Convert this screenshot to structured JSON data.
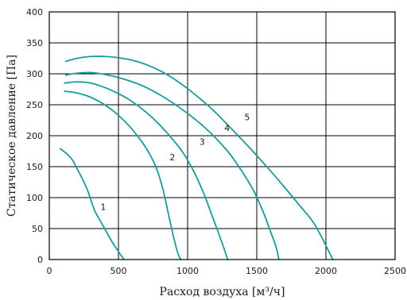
{
  "chart_data": {
    "type": "line",
    "title": "",
    "xlabel": "Расход воздуха [м³/ч]",
    "ylabel": "Статическое давление [Па]",
    "xlim": [
      0,
      2500
    ],
    "ylim": [
      0,
      400
    ],
    "x_ticks": [
      "0",
      "500",
      "1000",
      "1500",
      "2000",
      "2500"
    ],
    "y_ticks": [
      "0",
      "50",
      "100",
      "150",
      "200",
      "250",
      "300",
      "350",
      "400"
    ],
    "grid": true,
    "line_color": "#1a9a9a",
    "series": [
      {
        "name": "1",
        "label_at": [
          390,
          80
        ],
        "points": [
          [
            80,
            179
          ],
          [
            130,
            170
          ],
          [
            170,
            160
          ],
          [
            200,
            147
          ],
          [
            240,
            130
          ],
          [
            280,
            110
          ],
          [
            310,
            90
          ],
          [
            330,
            78
          ],
          [
            370,
            62
          ],
          [
            400,
            50
          ],
          [
            450,
            30
          ],
          [
            500,
            13
          ],
          [
            540,
            0
          ]
        ]
      },
      {
        "name": "2",
        "label_at": [
          890,
          160
        ],
        "points": [
          [
            110,
            272
          ],
          [
            200,
            269
          ],
          [
            300,
            262
          ],
          [
            400,
            250
          ],
          [
            500,
            233
          ],
          [
            600,
            210
          ],
          [
            700,
            180
          ],
          [
            770,
            150
          ],
          [
            820,
            115
          ],
          [
            860,
            75
          ],
          [
            900,
            35
          ],
          [
            930,
            10
          ],
          [
            950,
            0
          ]
        ]
      },
      {
        "name": "3",
        "label_at": [
          1105,
          185
        ],
        "points": [
          [
            110,
            285
          ],
          [
            200,
            287
          ],
          [
            300,
            285
          ],
          [
            400,
            278
          ],
          [
            500,
            268
          ],
          [
            600,
            255
          ],
          [
            700,
            238
          ],
          [
            800,
            217
          ],
          [
            900,
            192
          ],
          [
            980,
            168
          ],
          [
            1050,
            140
          ],
          [
            1120,
            105
          ],
          [
            1170,
            75
          ],
          [
            1220,
            45
          ],
          [
            1260,
            20
          ],
          [
            1290,
            0
          ]
        ]
      },
      {
        "name": "4",
        "label_at": [
          1285,
          208
        ],
        "points": [
          [
            120,
            298
          ],
          [
            200,
            301
          ],
          [
            300,
            302
          ],
          [
            400,
            299
          ],
          [
            500,
            294
          ],
          [
            600,
            287
          ],
          [
            700,
            278
          ],
          [
            800,
            266
          ],
          [
            900,
            252
          ],
          [
            1000,
            236
          ],
          [
            1100,
            218
          ],
          [
            1200,
            197
          ],
          [
            1300,
            172
          ],
          [
            1400,
            140
          ],
          [
            1480,
            110
          ],
          [
            1550,
            75
          ],
          [
            1600,
            45
          ],
          [
            1640,
            20
          ],
          [
            1660,
            0
          ]
        ]
      },
      {
        "name": "5",
        "label_at": [
          1430,
          225
        ],
        "points": [
          [
            120,
            320
          ],
          [
            200,
            325
          ],
          [
            300,
            328
          ],
          [
            400,
            328
          ],
          [
            500,
            326
          ],
          [
            600,
            322
          ],
          [
            700,
            315
          ],
          [
            800,
            305
          ],
          [
            900,
            292
          ],
          [
            1000,
            276
          ],
          [
            1100,
            258
          ],
          [
            1200,
            238
          ],
          [
            1300,
            215
          ],
          [
            1400,
            192
          ],
          [
            1500,
            168
          ],
          [
            1600,
            143
          ],
          [
            1700,
            117
          ],
          [
            1800,
            90
          ],
          [
            1900,
            63
          ],
          [
            1960,
            40
          ],
          [
            2010,
            18
          ],
          [
            2050,
            0
          ]
        ]
      }
    ]
  }
}
